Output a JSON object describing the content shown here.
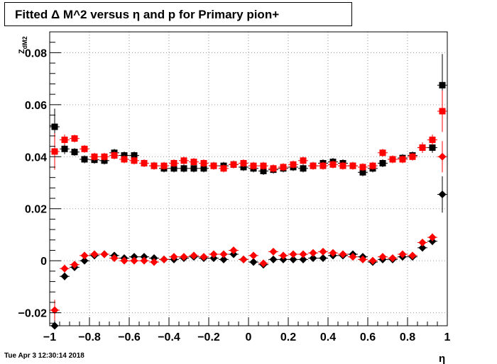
{
  "title": "Fitted Δ M^2 versus η and p for Primary pion+",
  "timestamp": "Tue Apr  3 12:30:14 2018",
  "chart_data": {
    "type": "scatter",
    "xlabel": "η",
    "ylabel": "Z_dM2",
    "xlim": [
      -1,
      1
    ],
    "ylim": [
      -0.025,
      0.088
    ],
    "grid": true,
    "x_ticks": [
      -1,
      -0.8,
      -0.6,
      -0.4,
      -0.2,
      0,
      0.2,
      0.4,
      0.6,
      0.8,
      1
    ],
    "x_tick_labels": [
      "−1",
      "−0.8",
      "−0.6",
      "−0.4",
      "−0.2",
      "0",
      "0.2",
      "0.4",
      "0.6",
      "0.8",
      "1"
    ],
    "y_ticks": [
      -0.02,
      0,
      0.02,
      0.04,
      0.06,
      0.08
    ],
    "y_tick_labels": [
      "−0.02",
      "0",
      "0.02",
      "0.04",
      "0.06",
      "0.08"
    ],
    "x": [
      -0.975,
      -0.925,
      -0.875,
      -0.825,
      -0.775,
      -0.725,
      -0.675,
      -0.625,
      -0.575,
      -0.525,
      -0.475,
      -0.425,
      -0.375,
      -0.325,
      -0.275,
      -0.225,
      -0.175,
      -0.125,
      -0.075,
      -0.025,
      0.025,
      0.075,
      0.125,
      0.175,
      0.225,
      0.275,
      0.325,
      0.375,
      0.425,
      0.475,
      0.525,
      0.575,
      0.625,
      0.675,
      0.725,
      0.775,
      0.825,
      0.875,
      0.925,
      0.975
    ],
    "series": [
      {
        "marker": "square",
        "color": "#000000",
        "values": [
          0.0515,
          0.043,
          0.0418,
          0.039,
          0.0388,
          0.0385,
          0.0415,
          0.0405,
          0.0405,
          0.0375,
          0.0365,
          0.0355,
          0.0355,
          0.0355,
          0.0355,
          0.0355,
          0.0365,
          0.0365,
          0.037,
          0.036,
          0.0355,
          0.0345,
          0.035,
          0.0355,
          0.036,
          0.0355,
          0.0365,
          0.0375,
          0.038,
          0.0375,
          0.0365,
          0.034,
          0.0355,
          0.0375,
          0.039,
          0.0395,
          0.0405,
          0.0435,
          0.0435,
          0.0675
        ],
        "errors": [
          0.007,
          0.002,
          0.0015,
          0.0015,
          0.0015,
          0.0015,
          0.0015,
          0.0015,
          0.0015,
          0.0015,
          0.0015,
          0.0015,
          0.0015,
          0.0015,
          0.0015,
          0.0015,
          0.0015,
          0.0015,
          0.0015,
          0.0015,
          0.0015,
          0.0015,
          0.0015,
          0.0015,
          0.0015,
          0.0015,
          0.0015,
          0.0015,
          0.0015,
          0.0015,
          0.0015,
          0.0015,
          0.0015,
          0.0015,
          0.0015,
          0.0015,
          0.0015,
          0.002,
          0.002,
          0.012
        ]
      },
      {
        "marker": "square",
        "color": "#ff0000",
        "values": [
          0.042,
          0.0465,
          0.047,
          0.043,
          0.04,
          0.04,
          0.0405,
          0.039,
          0.0385,
          0.0375,
          0.0365,
          0.0365,
          0.0375,
          0.0385,
          0.038,
          0.0375,
          0.0365,
          0.0355,
          0.037,
          0.0375,
          0.0365,
          0.0365,
          0.0355,
          0.036,
          0.037,
          0.0385,
          0.0365,
          0.0365,
          0.037,
          0.0365,
          0.0365,
          0.036,
          0.0365,
          0.0415,
          0.039,
          0.039,
          0.04,
          0.0435,
          0.0465,
          0.0575
        ],
        "errors": [
          0.007,
          0.002,
          0.0015,
          0.0015,
          0.0015,
          0.0015,
          0.0015,
          0.0015,
          0.0015,
          0.0015,
          0.0015,
          0.0015,
          0.0015,
          0.0015,
          0.0015,
          0.0015,
          0.0015,
          0.0015,
          0.0015,
          0.0015,
          0.0015,
          0.0015,
          0.0015,
          0.0015,
          0.0015,
          0.0015,
          0.0015,
          0.0015,
          0.0015,
          0.0015,
          0.0015,
          0.0015,
          0.0015,
          0.0015,
          0.0015,
          0.0015,
          0.0015,
          0.002,
          0.002,
          0.008
        ]
      },
      {
        "marker": "diamond",
        "color": "#000000",
        "values": [
          -0.025,
          -0.006,
          -0.0025,
          0,
          0.002,
          0.0025,
          0.002,
          0.001,
          0.0015,
          0.0015,
          0.001,
          0.0005,
          0.0005,
          0.001,
          0.0015,
          0.001,
          0.001,
          0.0005,
          0.0025,
          0.0005,
          -0.0005,
          -0.0015,
          0.0005,
          0.0005,
          0.0005,
          0.0005,
          0.001,
          0.001,
          0.002,
          0.002,
          0.0025,
          0.0015,
          -0.0005,
          0.0005,
          0.0005,
          0.0015,
          0.0015,
          0.005,
          0.0075,
          0.0255
        ],
        "errors": [
          0.006,
          0.0015,
          0.001,
          0.001,
          0.001,
          0.001,
          0.001,
          0.001,
          0.001,
          0.001,
          0.001,
          0.001,
          0.001,
          0.001,
          0.001,
          0.001,
          0.001,
          0.001,
          0.001,
          0.001,
          0.001,
          0.001,
          0.001,
          0.001,
          0.001,
          0.001,
          0.001,
          0.001,
          0.001,
          0.001,
          0.001,
          0.001,
          0.001,
          0.001,
          0.001,
          0.001,
          0.001,
          0.001,
          0.0015,
          0.007
        ]
      },
      {
        "marker": "diamond",
        "color": "#ff0000",
        "values": [
          -0.019,
          -0.003,
          -0.0015,
          0.002,
          0.0025,
          0.0025,
          0.001,
          0,
          0,
          0,
          -0.0005,
          0.0005,
          0.0015,
          0.0015,
          0.002,
          0.0015,
          0.0025,
          0.0025,
          0.004,
          0.0005,
          0.002,
          -0.001,
          0.0035,
          0.002,
          0.0025,
          0.0025,
          0.003,
          0.0035,
          0.003,
          0.0025,
          0.0015,
          0.0005,
          0,
          0.0015,
          0.001,
          0.0025,
          0.002,
          0.007,
          0.009,
          0.04
        ],
        "errors": [
          0.004,
          0.0015,
          0.001,
          0.001,
          0.001,
          0.001,
          0.001,
          0.001,
          0.001,
          0.001,
          0.001,
          0.001,
          0.001,
          0.001,
          0.001,
          0.001,
          0.001,
          0.001,
          0.001,
          0.001,
          0.001,
          0.001,
          0.001,
          0.001,
          0.001,
          0.001,
          0.001,
          0.001,
          0.001,
          0.001,
          0.001,
          0.001,
          0.001,
          0.001,
          0.001,
          0.001,
          0.001,
          0.001,
          0.0015,
          0.006
        ]
      }
    ]
  }
}
